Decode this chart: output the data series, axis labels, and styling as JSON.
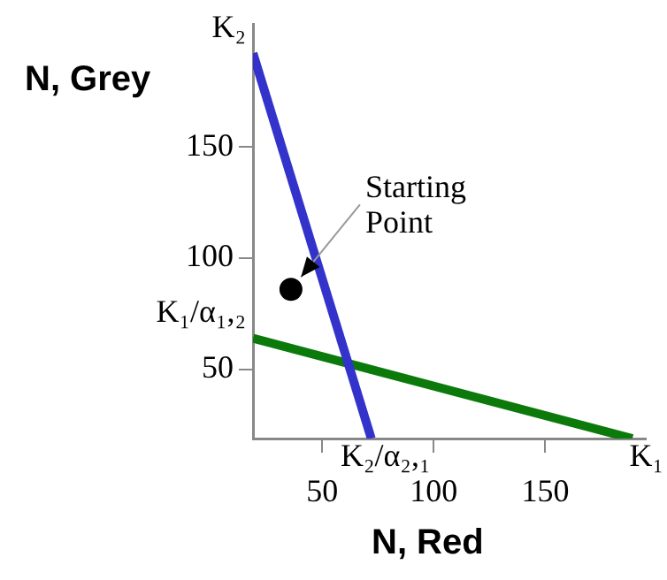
{
  "chart_data": {
    "type": "line",
    "xlabel": "N, Red",
    "ylabel": "N, Grey",
    "xlim": [
      19,
      195
    ],
    "ylim": [
      19,
      205
    ],
    "xticks": [
      50,
      100,
      150
    ],
    "yticks": [
      50,
      100,
      150
    ],
    "grid": false,
    "legend": false,
    "marker": "none",
    "line_style": "solid",
    "series": [
      {
        "x": [
          19,
          72
        ],
        "values": [
          192,
          19
        ],
        "color": "#3333cc"
      },
      {
        "x": [
          19,
          189
        ],
        "values": [
          64,
          19
        ],
        "color": "#0b7a0b"
      },
      {
        "type": "scatter",
        "marker": "circle",
        "x": [
          36
        ],
        "values": [
          86
        ],
        "color": "#000000"
      }
    ],
    "annotations": [
      {
        "text": "K₂",
        "x": 19,
        "y": 192
      },
      {
        "text": "K₁/α₁,₂",
        "x": 19,
        "y": 64
      },
      {
        "text": "K₂/α₂,₁",
        "x": 72,
        "y": 19
      },
      {
        "text": "K₁",
        "x": 189,
        "y": 19
      },
      {
        "text": "Starting Point",
        "x": 36,
        "y": 86
      }
    ]
  }
}
